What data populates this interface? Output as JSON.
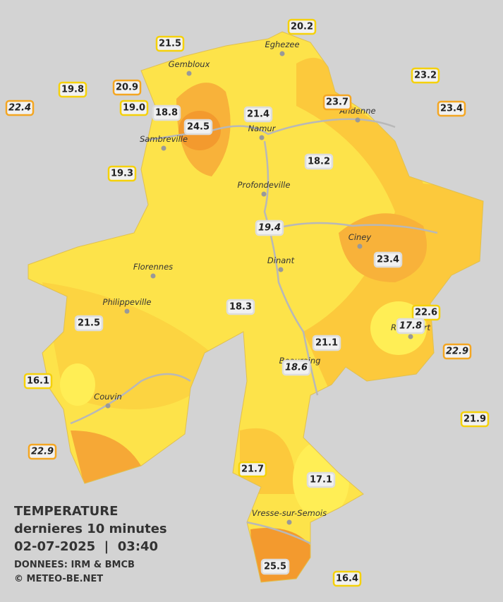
{
  "title": "TEMPERATURE",
  "subtitle": "dernieres 10 minutes",
  "datetime": "02-07-2025  |  03:40",
  "source": "DONNEES: IRM & BMCB",
  "copyright": "© METEO-BE.NET",
  "cities": [
    "Eghezee",
    "Gembloux",
    "Andenne",
    "Namur",
    "Sambreville",
    "Profondeville",
    "Ciney",
    "Dinant",
    "Florennes",
    "Philippeville",
    "Beauraing",
    "Rochefort",
    "Couvin",
    "Vresse-sur-Semois"
  ],
  "stations": [
    "20.2",
    "21.5",
    "23.2",
    "19.8",
    "20.9",
    "22.4",
    "19.0",
    "18.8",
    "23.7",
    "23.4",
    "24.5",
    "21.4",
    "18.2",
    "19.3",
    "19.4",
    "23.4",
    "18.3",
    "22.6",
    "17.8",
    "21.5",
    "21.1",
    "22.9",
    "18.6",
    "16.1",
    "21.9",
    "22.9",
    "21.7",
    "17.1",
    "25.5",
    "16.4"
  ]
}
